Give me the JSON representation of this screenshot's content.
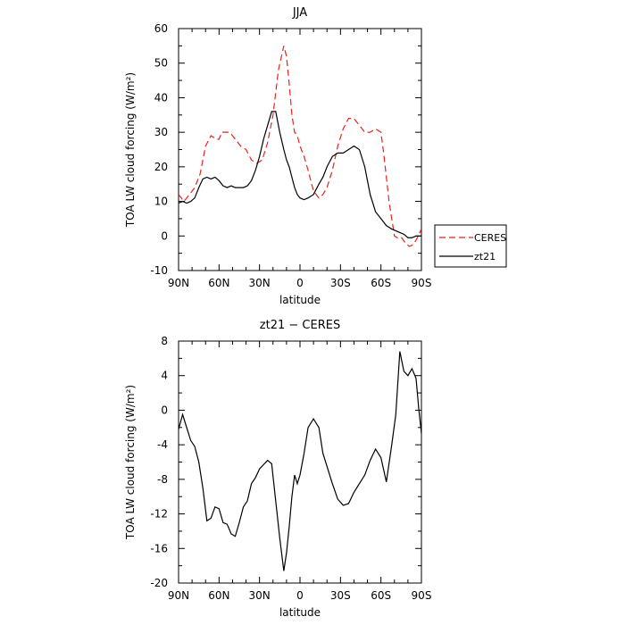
{
  "chart_data": [
    {
      "type": "line",
      "title": "JJA",
      "xlabel": "latitude",
      "ylabel": "TOA LW cloud forcing (W/m²)",
      "xlim": [
        90,
        -90
      ],
      "ylim": [
        -10,
        60
      ],
      "xticks": [
        90,
        60,
        30,
        0,
        -30,
        -60,
        -90
      ],
      "xtick_labels": [
        "90N",
        "60N",
        "30N",
        "0",
        "30S",
        "60S",
        "90S"
      ],
      "yticks": [
        -10,
        0,
        10,
        20,
        30,
        40,
        50,
        60
      ],
      "ytick_labels": [
        "-10",
        "0",
        "10",
        "20",
        "30",
        "40",
        "50",
        "60"
      ],
      "legend_position": "outside-right",
      "series": [
        {
          "name": "CERES",
          "color": "#e8231f",
          "dash": "dashed",
          "x": [
            90,
            86,
            82,
            78,
            74,
            70,
            66,
            62,
            60,
            58,
            55,
            52,
            48,
            44,
            40,
            36,
            32,
            28,
            24,
            20,
            16,
            12,
            10,
            8,
            6,
            4,
            2,
            0,
            -3,
            -6,
            -10,
            -14,
            -17,
            -20,
            -24,
            -28,
            -32,
            -36,
            -40,
            -44,
            -48,
            -52,
            -56,
            -60,
            -62,
            -66,
            -70,
            -72,
            -75,
            -78,
            -81,
            -84,
            -87,
            -90
          ],
          "y": [
            12,
            10,
            12,
            14,
            18,
            26,
            29,
            28,
            28,
            30,
            30,
            30,
            28,
            26,
            25,
            22,
            21,
            22,
            27,
            35,
            48,
            55,
            52,
            44,
            35,
            30,
            29,
            26,
            23,
            19,
            13,
            11,
            12,
            14,
            19,
            26,
            31,
            34,
            34,
            32,
            30,
            30,
            31,
            30,
            24,
            10,
            0,
            -0.5,
            -0.3,
            -2,
            -3,
            -2.5,
            -0.5,
            2
          ]
        },
        {
          "name": "zt21",
          "color": "#000000",
          "dash": "solid",
          "x": [
            90,
            87,
            84,
            81,
            78,
            75,
            72,
            69,
            66,
            63,
            60,
            57,
            54,
            51,
            48,
            45,
            42,
            39,
            36,
            33,
            30,
            27,
            24,
            21,
            18,
            15,
            12,
            10,
            8,
            6,
            4,
            2,
            0,
            -3,
            -6,
            -10,
            -14,
            -17,
            -20,
            -24,
            -28,
            -32,
            -36,
            -40,
            -44,
            -48,
            -52,
            -56,
            -60,
            -64,
            -68,
            -71,
            -74,
            -77,
            -80,
            -83,
            -86,
            -88,
            -90
          ],
          "y": [
            9.5,
            10,
            9.5,
            10,
            11,
            14,
            16.5,
            17,
            16.5,
            17,
            16,
            14.5,
            14,
            14.5,
            14,
            14,
            14,
            14.5,
            16,
            19,
            23,
            28,
            32,
            36,
            36,
            30,
            25,
            22,
            20,
            17,
            14,
            12,
            11,
            10.5,
            11,
            12,
            15,
            17,
            20,
            23,
            24,
            24,
            25,
            26,
            25,
            20,
            12,
            7,
            5,
            3,
            2,
            1.5,
            1,
            0.5,
            -0.5,
            -0.5,
            0,
            0,
            0
          ]
        }
      ]
    },
    {
      "type": "line",
      "title": "zt21 − CERES",
      "xlabel": "latitude",
      "ylabel": "TOA LW cloud forcing (W/m²)",
      "xlim": [
        90,
        -90
      ],
      "ylim": [
        -20,
        8
      ],
      "xticks": [
        90,
        60,
        30,
        0,
        -30,
        -60,
        -90
      ],
      "xtick_labels": [
        "90N",
        "60N",
        "30N",
        "0",
        "30S",
        "60S",
        "90S"
      ],
      "yticks": [
        -20,
        -16,
        -12,
        -8,
        -4,
        0,
        4,
        8
      ],
      "ytick_labels": [
        "-20",
        "-16",
        "-12",
        "-8",
        "-4",
        "0",
        "4",
        "8"
      ],
      "series": [
        {
          "color": "#000000",
          "dash": "solid",
          "x": [
            90,
            87,
            84,
            81,
            78,
            75,
            72,
            69,
            66,
            63,
            60,
            57,
            54,
            51,
            48,
            45,
            42,
            39,
            36,
            33,
            30,
            27,
            24,
            21,
            18,
            15,
            12,
            10,
            8,
            6,
            4,
            2,
            0,
            -3,
            -6,
            -10,
            -14,
            -17,
            -20,
            -24,
            -28,
            -32,
            -36,
            -40,
            -44,
            -48,
            -52,
            -56,
            -60,
            -64,
            -68,
            -71,
            -74,
            -77,
            -80,
            -83,
            -86,
            -88,
            -90
          ],
          "y": [
            -2.2,
            -0.5,
            -2,
            -3.5,
            -4.2,
            -6,
            -9,
            -12.8,
            -12.5,
            -11.2,
            -11.4,
            -13,
            -13.2,
            -14.3,
            -14.6,
            -13,
            -11.2,
            -10.5,
            -8.5,
            -7.8,
            -6.8,
            -6.3,
            -5.8,
            -6.2,
            -10.5,
            -14.8,
            -18.6,
            -16.5,
            -13.5,
            -10,
            -7.5,
            -8.5,
            -7.5,
            -5,
            -2,
            -1,
            -2,
            -5,
            -6.5,
            -8.5,
            -10.3,
            -11,
            -10.8,
            -9.5,
            -8.5,
            -7.5,
            -5.8,
            -4.5,
            -5.5,
            -8.3,
            -4,
            -0.5,
            6.8,
            4.5,
            4,
            4.8,
            3.7,
            0.2,
            -2.7
          ]
        }
      ]
    }
  ]
}
